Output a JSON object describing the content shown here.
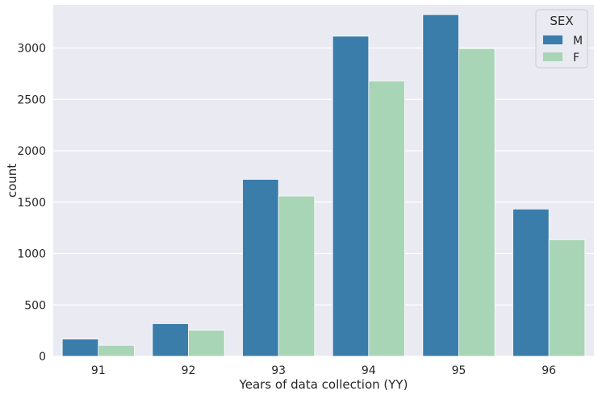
{
  "chart_data": {
    "type": "bar",
    "title": "",
    "xlabel": "Years of data collection (YY)",
    "ylabel": "count",
    "categories": [
      "91",
      "92",
      "93",
      "94",
      "95",
      "96"
    ],
    "series": [
      {
        "name": "M",
        "color": "#3a7dab",
        "values": [
          168,
          318,
          1722,
          3115,
          3325,
          1433
        ]
      },
      {
        "name": "F",
        "color": "#a8d5b6",
        "values": [
          108,
          255,
          1560,
          2680,
          2995,
          1135
        ]
      }
    ],
    "ylim": [
      0,
      3420
    ],
    "yticks": [
      0,
      500,
      1000,
      1500,
      2000,
      2500,
      3000
    ],
    "grid": true,
    "legend": {
      "title": "SEX",
      "position": "top-right"
    },
    "background_color": "#eaeaf2",
    "grid_color": "#ffffff"
  }
}
